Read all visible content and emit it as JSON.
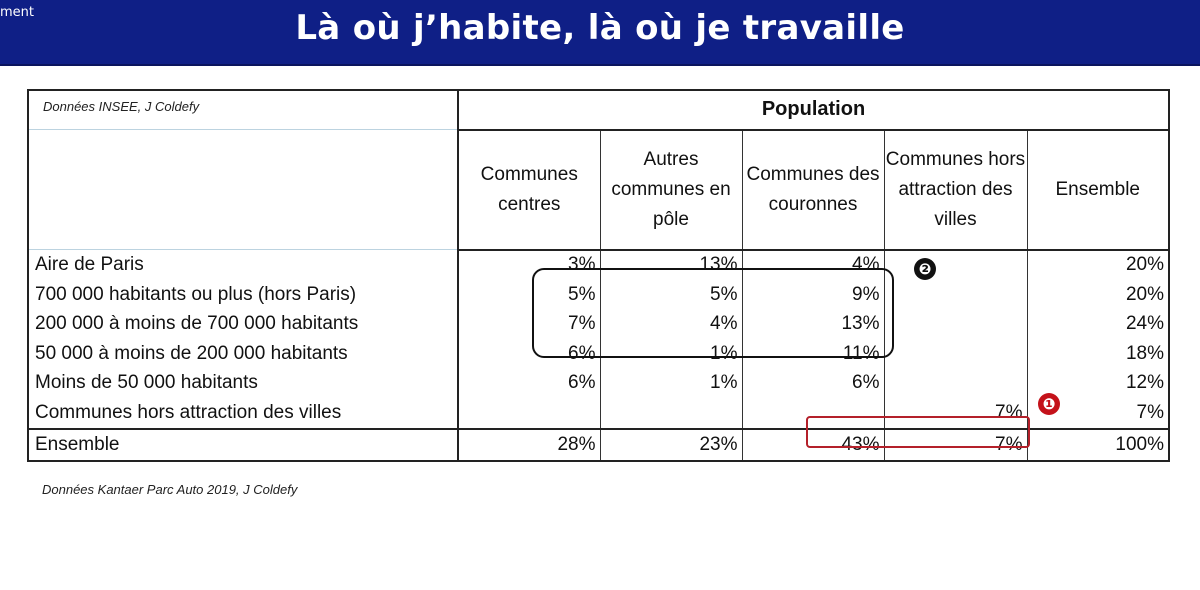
{
  "header": {
    "corner_text": "ment",
    "title": "Là où j’habite, là où je travaille"
  },
  "table": {
    "source": "Données INSEE, J Coldefy",
    "group_header": "Population",
    "columns": [
      "Communes centres",
      "Autres communes en pôle",
      "Communes des couronnes",
      "Communes hors attraction des villes",
      "Ensemble"
    ],
    "rows": [
      {
        "label": "Aire de Paris",
        "values": [
          "3%",
          "13%",
          "4%",
          "",
          "20%"
        ]
      },
      {
        "label": "700 000 habitants ou plus (hors Paris)",
        "values": [
          "5%",
          "5%",
          "9%",
          "",
          "20%"
        ]
      },
      {
        "label": "200 000 à moins de 700 000 habitants",
        "values": [
          "7%",
          "4%",
          "13%",
          "",
          "24%"
        ]
      },
      {
        "label": "50 000 à moins de 200 000 habitants",
        "values": [
          "6%",
          "1%",
          "11%",
          "",
          "18%"
        ]
      },
      {
        "label": "Moins de 50 000 habitants",
        "values": [
          "6%",
          "1%",
          "6%",
          "",
          "12%"
        ]
      },
      {
        "label": "Communes hors attraction des villes",
        "values": [
          "",
          "",
          "",
          "7%",
          "7%"
        ]
      }
    ],
    "total": {
      "label": "Ensemble",
      "values": [
        "28%",
        "23%",
        "43%",
        "7%",
        "100%"
      ]
    }
  },
  "annotations": {
    "badge_1": "❶",
    "badge_2": "❷",
    "accent_red": "#c4121a",
    "accent_black": "#111111"
  },
  "footnote": "Données Kantaer Parc Auto 2019, J Coldefy"
}
